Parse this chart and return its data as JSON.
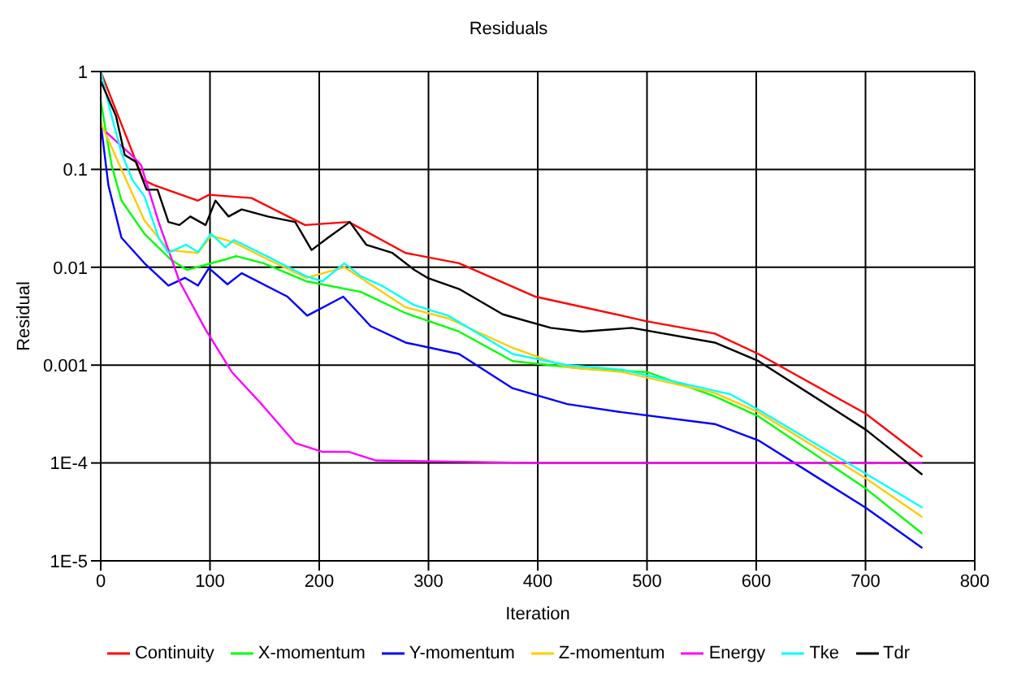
{
  "chart_data": {
    "type": "line",
    "title": "Residuals",
    "xlabel": "Iteration",
    "ylabel": "Residual",
    "log": "y",
    "grid": true,
    "legend": "bottom",
    "marker": "none",
    "line_style": "solid",
    "xlim": [
      0,
      800
    ],
    "xticks": [
      0,
      100,
      200,
      300,
      400,
      500,
      600,
      700,
      800
    ],
    "ylim": [
      1e-05,
      1
    ],
    "yticks": [
      {
        "value": 1e-05,
        "label": "1E-5"
      },
      {
        "value": 0.0001,
        "label": "1E-4"
      },
      0.001,
      0.01,
      0.1,
      1
    ],
    "series": [
      {
        "name": "Continuity",
        "color": "#ff0000",
        "x": [
          0,
          39,
          49,
          89,
          99,
          138,
          187,
          227,
          279,
          328,
          398,
          477,
          500,
          562,
          602,
          700,
          752
        ],
        "values": [
          1,
          0.078,
          0.069,
          0.048,
          0.055,
          0.051,
          0.027,
          0.029,
          0.014,
          0.011,
          0.005,
          0.0032,
          0.0028,
          0.0021,
          0.0013,
          0.00032,
          0.000115
        ]
      },
      {
        "name": "X-momentum",
        "color": "#00ff00",
        "x": [
          0,
          10,
          19,
          40,
          64,
          79,
          114,
          124,
          149,
          188,
          238,
          279,
          328,
          377,
          441,
          500,
          562,
          602,
          700,
          752
        ],
        "values": [
          0.5,
          0.11,
          0.048,
          0.022,
          0.012,
          0.0094,
          0.012,
          0.013,
          0.011,
          0.0072,
          0.0056,
          0.0034,
          0.0022,
          0.0011,
          0.00092,
          0.00085,
          0.00048,
          0.0003,
          5.5e-05,
          1.9e-05
        ]
      },
      {
        "name": "Y-momentum",
        "color": "#0000ff",
        "x": [
          0,
          7,
          19,
          40,
          62,
          77,
          89,
          99,
          116,
          129,
          171,
          189,
          222,
          247,
          279,
          328,
          377,
          427,
          477,
          562,
          602,
          700,
          752
        ],
        "values": [
          0.3,
          0.069,
          0.02,
          0.011,
          0.0065,
          0.0078,
          0.0065,
          0.0098,
          0.0067,
          0.0087,
          0.005,
          0.0032,
          0.005,
          0.0025,
          0.0017,
          0.0013,
          0.00058,
          0.0004,
          0.00033,
          0.00025,
          0.00017,
          3.5e-05,
          1.35e-05
        ]
      },
      {
        "name": "Z-momentum",
        "color": "#ffcc00",
        "x": [
          0,
          19,
          40,
          62,
          89,
          101,
          122,
          153,
          188,
          223,
          279,
          318,
          377,
          427,
          477,
          562,
          602,
          700,
          752
        ],
        "values": [
          0.3,
          0.1,
          0.03,
          0.015,
          0.014,
          0.021,
          0.018,
          0.012,
          0.0078,
          0.01,
          0.0039,
          0.003,
          0.0015,
          0.00095,
          0.00085,
          0.00052,
          0.00033,
          7e-05,
          2.8e-05
        ]
      },
      {
        "name": "Energy",
        "color": "#ff00ff",
        "x": [
          5,
          29,
          37,
          53,
          72,
          96,
          120,
          148,
          178,
          203,
          227,
          252,
          400,
          600,
          752
        ],
        "values": [
          0.24,
          0.137,
          0.11,
          0.029,
          0.0072,
          0.0023,
          0.00085,
          0.00039,
          0.00016,
          0.00013,
          0.00013,
          0.000106,
          0.0001,
          0.0001,
          0.0001
        ]
      },
      {
        "name": "Tke",
        "color": "#00ffff",
        "x": [
          0,
          10,
          19,
          29,
          40,
          53,
          62,
          78,
          89,
          101,
          114,
          122,
          153,
          188,
          203,
          223,
          238,
          257,
          287,
          318,
          377,
          427,
          477,
          577,
          602,
          700,
          752
        ],
        "values": [
          1,
          0.35,
          0.147,
          0.078,
          0.053,
          0.02,
          0.014,
          0.017,
          0.0143,
          0.022,
          0.016,
          0.019,
          0.0128,
          0.0081,
          0.0072,
          0.011,
          0.0081,
          0.0065,
          0.0041,
          0.0032,
          0.0013,
          0.001,
          0.0009,
          0.0005,
          0.00035,
          7.8e-05,
          3.5e-05
        ]
      },
      {
        "name": "Tdr",
        "color": "#000000",
        "x": [
          0,
          14,
          22,
          32,
          42,
          52,
          62,
          72,
          82,
          96,
          105,
          117,
          129,
          153,
          178,
          193,
          208,
          228,
          243,
          267,
          287,
          299,
          328,
          368,
          412,
          441,
          486,
          562,
          602,
          700,
          752
        ],
        "values": [
          0.8,
          0.35,
          0.14,
          0.12,
          0.062,
          0.062,
          0.029,
          0.027,
          0.033,
          0.027,
          0.048,
          0.033,
          0.039,
          0.033,
          0.029,
          0.015,
          0.02,
          0.029,
          0.017,
          0.014,
          0.0094,
          0.0078,
          0.006,
          0.0033,
          0.0024,
          0.0022,
          0.0024,
          0.0017,
          0.0011,
          0.00022,
          7.6e-05
        ]
      }
    ]
  }
}
